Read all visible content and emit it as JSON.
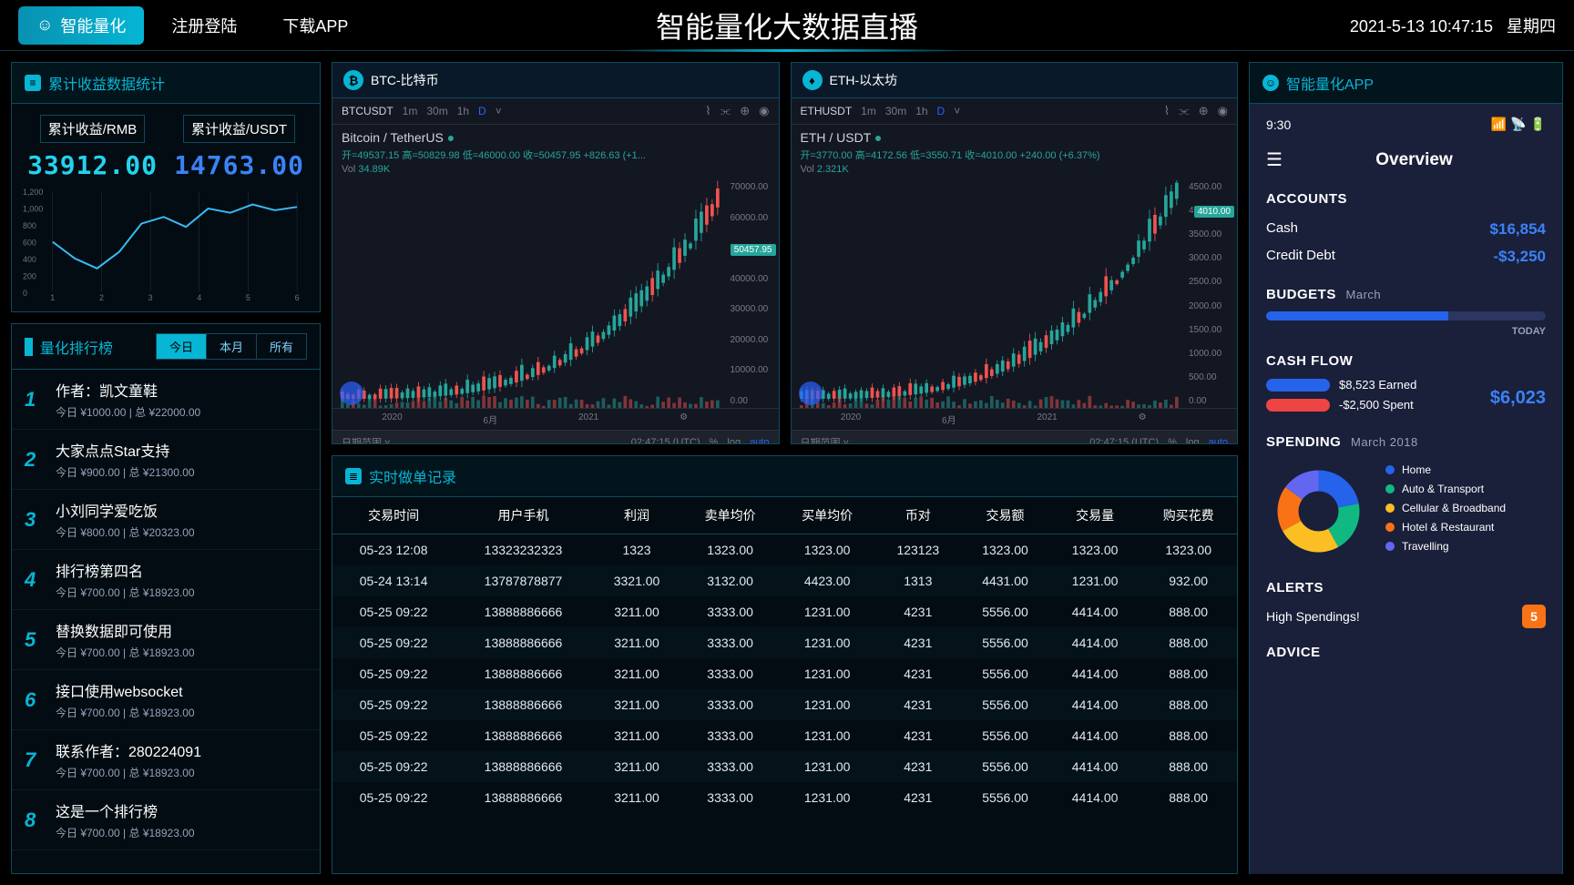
{
  "header": {
    "nav": [
      {
        "label": "智能量化",
        "active": true
      },
      {
        "label": "注册登陆",
        "active": false
      },
      {
        "label": "下载APP",
        "active": false
      }
    ],
    "title": "智能量化大数据直播",
    "datetime": "2021-5-13 10:47:15",
    "weekday": "星期四"
  },
  "stats_panel": {
    "title": "累计收益数据统计",
    "stats": [
      {
        "label": "累计收益/RMB",
        "value": "33912.00",
        "color": "cyan"
      },
      {
        "label": "累计收益/USDT",
        "value": "14763.00",
        "color": "blue"
      }
    ],
    "mini_chart": {
      "y_ticks": [
        "1,200",
        "1,000",
        "800",
        "600",
        "400",
        "200",
        "0"
      ],
      "x_ticks": [
        "1",
        "2",
        "3",
        "4",
        "5",
        "6"
      ],
      "points": [
        [
          0,
          600
        ],
        [
          40,
          400
        ],
        [
          80,
          280
        ],
        [
          120,
          480
        ],
        [
          160,
          820
        ],
        [
          200,
          900
        ],
        [
          240,
          780
        ],
        [
          280,
          1000
        ],
        [
          320,
          950
        ],
        [
          360,
          1050
        ],
        [
          400,
          980
        ],
        [
          440,
          1020
        ]
      ],
      "y_max": 1200,
      "line_color": "#38bdf8"
    }
  },
  "rank_panel": {
    "title": "量化排行榜",
    "tabs": [
      "今日",
      "本月",
      "所有"
    ],
    "active_tab": 0,
    "items": [
      {
        "num": "1",
        "name": "作者：凯文童鞋",
        "detail": "今日 ¥1000.00 | 总 ¥22000.00"
      },
      {
        "num": "2",
        "name": "大家点点Star支持",
        "detail": "今日 ¥900.00 | 总 ¥21300.00"
      },
      {
        "num": "3",
        "name": "小刘同学爱吃饭",
        "detail": "今日 ¥800.00 | 总 ¥20323.00"
      },
      {
        "num": "4",
        "name": "排行榜第四名",
        "detail": "今日 ¥700.00 | 总 ¥18923.00"
      },
      {
        "num": "5",
        "name": "替换数据即可使用",
        "detail": "今日 ¥700.00 | 总 ¥18923.00"
      },
      {
        "num": "6",
        "name": "接口使用websocket",
        "detail": "今日 ¥700.00 | 总 ¥18923.00"
      },
      {
        "num": "7",
        "name": "联系作者：280224091",
        "detail": "今日 ¥700.00 | 总 ¥18923.00"
      },
      {
        "num": "8",
        "name": "这是一个排行榜",
        "detail": "今日 ¥700.00 | 总 ¥18923.00"
      }
    ]
  },
  "charts": {
    "btc": {
      "title": "BTC-比特币",
      "symbol": "BTCUSDT",
      "timeframes": [
        "1m",
        "30m",
        "1h",
        "D"
      ],
      "active_tf": 3,
      "pair": "Bitcoin / TetherUS",
      "ohlc": "开=49537.15 高=50829.98 低=46000.00 收=50457.95 +826.63 (+1...",
      "vol_label": "Vol",
      "vol": "34.89K",
      "y_ticks": [
        "70000.00",
        "60000.00",
        "50000.00",
        "40000.00",
        "30000.00",
        "20000.00",
        "10000.00",
        "0.00"
      ],
      "price_tag": "50457.95",
      "price_tag_pct": 28,
      "x_ticks": [
        "2020",
        "6月",
        "2021"
      ],
      "footer_left": "日期范围",
      "footer_time": "02:47:15 (UTC)",
      "footer_opts": [
        "%",
        "log",
        "auto"
      ]
    },
    "eth": {
      "title": "ETH-以太坊",
      "symbol": "ETHUSDT",
      "timeframes": [
        "1m",
        "30m",
        "1h",
        "D"
      ],
      "active_tf": 3,
      "pair": "ETH / USDT",
      "ohlc": "开=3770.00 高=4172.56 低=3550.71 收=4010.00 +240.00 (+6.37%)",
      "vol_label": "Vol",
      "vol": "2.321K",
      "y_ticks": [
        "4500.00",
        "4000.00",
        "3500.00",
        "3000.00",
        "2500.00",
        "2000.00",
        "1500.00",
        "1000.00",
        "500.00",
        "0.00"
      ],
      "price_tag": "4010.00",
      "price_tag_pct": 11,
      "x_ticks": [
        "2020",
        "6月",
        "2021"
      ],
      "footer_left": "日期范围",
      "footer_time": "02:47:15 (UTC)",
      "footer_opts": [
        "%",
        "log",
        "auto"
      ]
    }
  },
  "orders": {
    "title": "实时做单记录",
    "columns": [
      "交易时间",
      "用户手机",
      "利润",
      "卖单均价",
      "买单均价",
      "币对",
      "交易额",
      "交易量",
      "购买花费"
    ],
    "rows": [
      [
        "05-23 12:08",
        "13323232323",
        "1323",
        "1323.00",
        "1323.00",
        "123123",
        "1323.00",
        "1323.00",
        "1323.00"
      ],
      [
        "05-24 13:14",
        "13787878877",
        "3321.00",
        "3132.00",
        "4423.00",
        "1313",
        "4431.00",
        "1231.00",
        "932.00"
      ],
      [
        "05-25 09:22",
        "13888886666",
        "3211.00",
        "3333.00",
        "1231.00",
        "4231",
        "5556.00",
        "4414.00",
        "888.00"
      ],
      [
        "05-25 09:22",
        "13888886666",
        "3211.00",
        "3333.00",
        "1231.00",
        "4231",
        "5556.00",
        "4414.00",
        "888.00"
      ],
      [
        "05-25 09:22",
        "13888886666",
        "3211.00",
        "3333.00",
        "1231.00",
        "4231",
        "5556.00",
        "4414.00",
        "888.00"
      ],
      [
        "05-25 09:22",
        "13888886666",
        "3211.00",
        "3333.00",
        "1231.00",
        "4231",
        "5556.00",
        "4414.00",
        "888.00"
      ],
      [
        "05-25 09:22",
        "13888886666",
        "3211.00",
        "3333.00",
        "1231.00",
        "4231",
        "5556.00",
        "4414.00",
        "888.00"
      ],
      [
        "05-25 09:22",
        "13888886666",
        "3211.00",
        "3333.00",
        "1231.00",
        "4231",
        "5556.00",
        "4414.00",
        "888.00"
      ],
      [
        "05-25 09:22",
        "13888886666",
        "3211.00",
        "3333.00",
        "1231.00",
        "4231",
        "5556.00",
        "4414.00",
        "888.00"
      ]
    ]
  },
  "app": {
    "title": "智能量化APP",
    "time": "9:30",
    "overview": "Overview",
    "accounts_h": "ACCOUNTS",
    "accounts": [
      {
        "label": "Cash",
        "value": "$16,854"
      },
      {
        "label": "Credit Debt",
        "value": "-$3,250"
      }
    ],
    "budgets_h": "BUDGETS",
    "budgets_sub": "March",
    "budgets_label": "TODAY",
    "budgets_pct": 65,
    "cashflow_h": "CASH FLOW",
    "cashflow": [
      {
        "label": "$8,523 Earned",
        "color": "#2563eb"
      },
      {
        "label": "-$2,500 Spent",
        "color": "#ef4444"
      }
    ],
    "cashflow_total": "$6,023",
    "spending_h": "SPENDING",
    "spending_sub": "March 2018",
    "spending_items": [
      {
        "label": "Home",
        "color": "#2563eb",
        "pct": 22
      },
      {
        "label": "Auto & Transport",
        "color": "#10b981",
        "pct": 20
      },
      {
        "label": "Cellular & Broadband",
        "color": "#fbbf24",
        "pct": 25
      },
      {
        "label": "Hotel & Restaurant",
        "color": "#f97316",
        "pct": 18
      },
      {
        "label": "Travelling",
        "color": "#6366f1",
        "pct": 15
      }
    ],
    "alerts_h": "ALERTS",
    "alerts_text": "High Spendings!",
    "alerts_count": "5",
    "advice_h": "ADVICE"
  },
  "colors": {
    "cyan": "#06b6d4",
    "bg": "#000000",
    "panel_border": "#0e4a5e",
    "green": "#26a69a",
    "red": "#ef5350"
  }
}
